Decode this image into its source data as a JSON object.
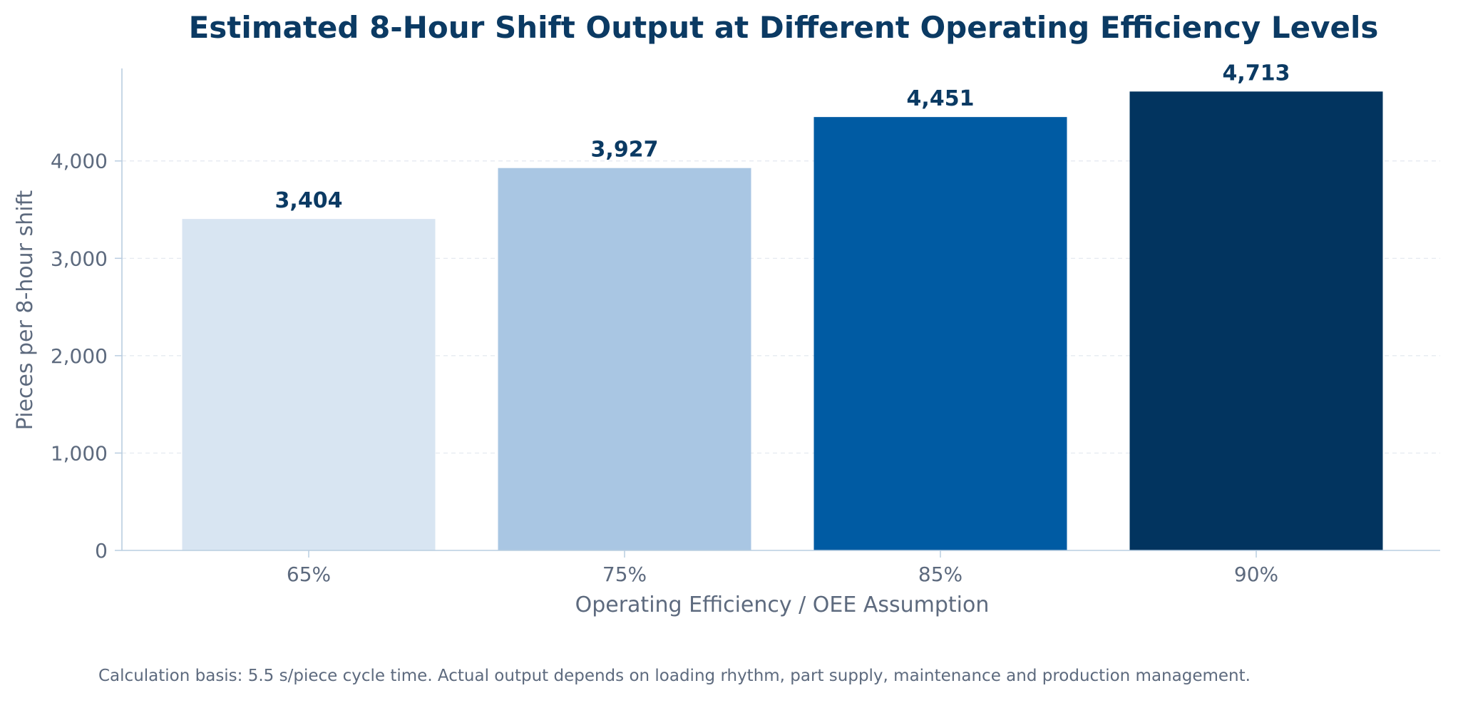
{
  "chart_data": {
    "type": "bar",
    "title": "Estimated 8-Hour Shift Output at Different Operating Efficiency Levels",
    "xlabel": "Operating Efficiency / OEE Assumption",
    "ylabel": "Pieces per 8-hour shift",
    "categories": [
      "65%",
      "75%",
      "85%",
      "90%"
    ],
    "values": [
      3404,
      3927,
      4451,
      4713
    ],
    "value_labels": [
      "3,404",
      "3,927",
      "4,451",
      "4,713"
    ],
    "bar_colors": [
      "#d8e5f2",
      "#a9c6e3",
      "#005ba3",
      "#02345f"
    ],
    "ylim": [
      0,
      4950
    ],
    "yticks": [
      0,
      1000,
      2000,
      3000,
      4000
    ],
    "ytick_labels": [
      "0",
      "1,000",
      "2,000",
      "3,000",
      "4,000"
    ],
    "grid": true,
    "legend": "none",
    "footnote": "Calculation basis: 5.5 s/piece cycle time. Actual output depends on loading rhythm, part supply, maintenance and production management."
  },
  "colors": {
    "title": "#0b3a63",
    "data_label": "#0b3a63",
    "tick_text": "#5d6a7e",
    "axis_line": "#b9cde0",
    "grid_line": "#e2e8ef",
    "footnote": "#5d6a7e"
  }
}
